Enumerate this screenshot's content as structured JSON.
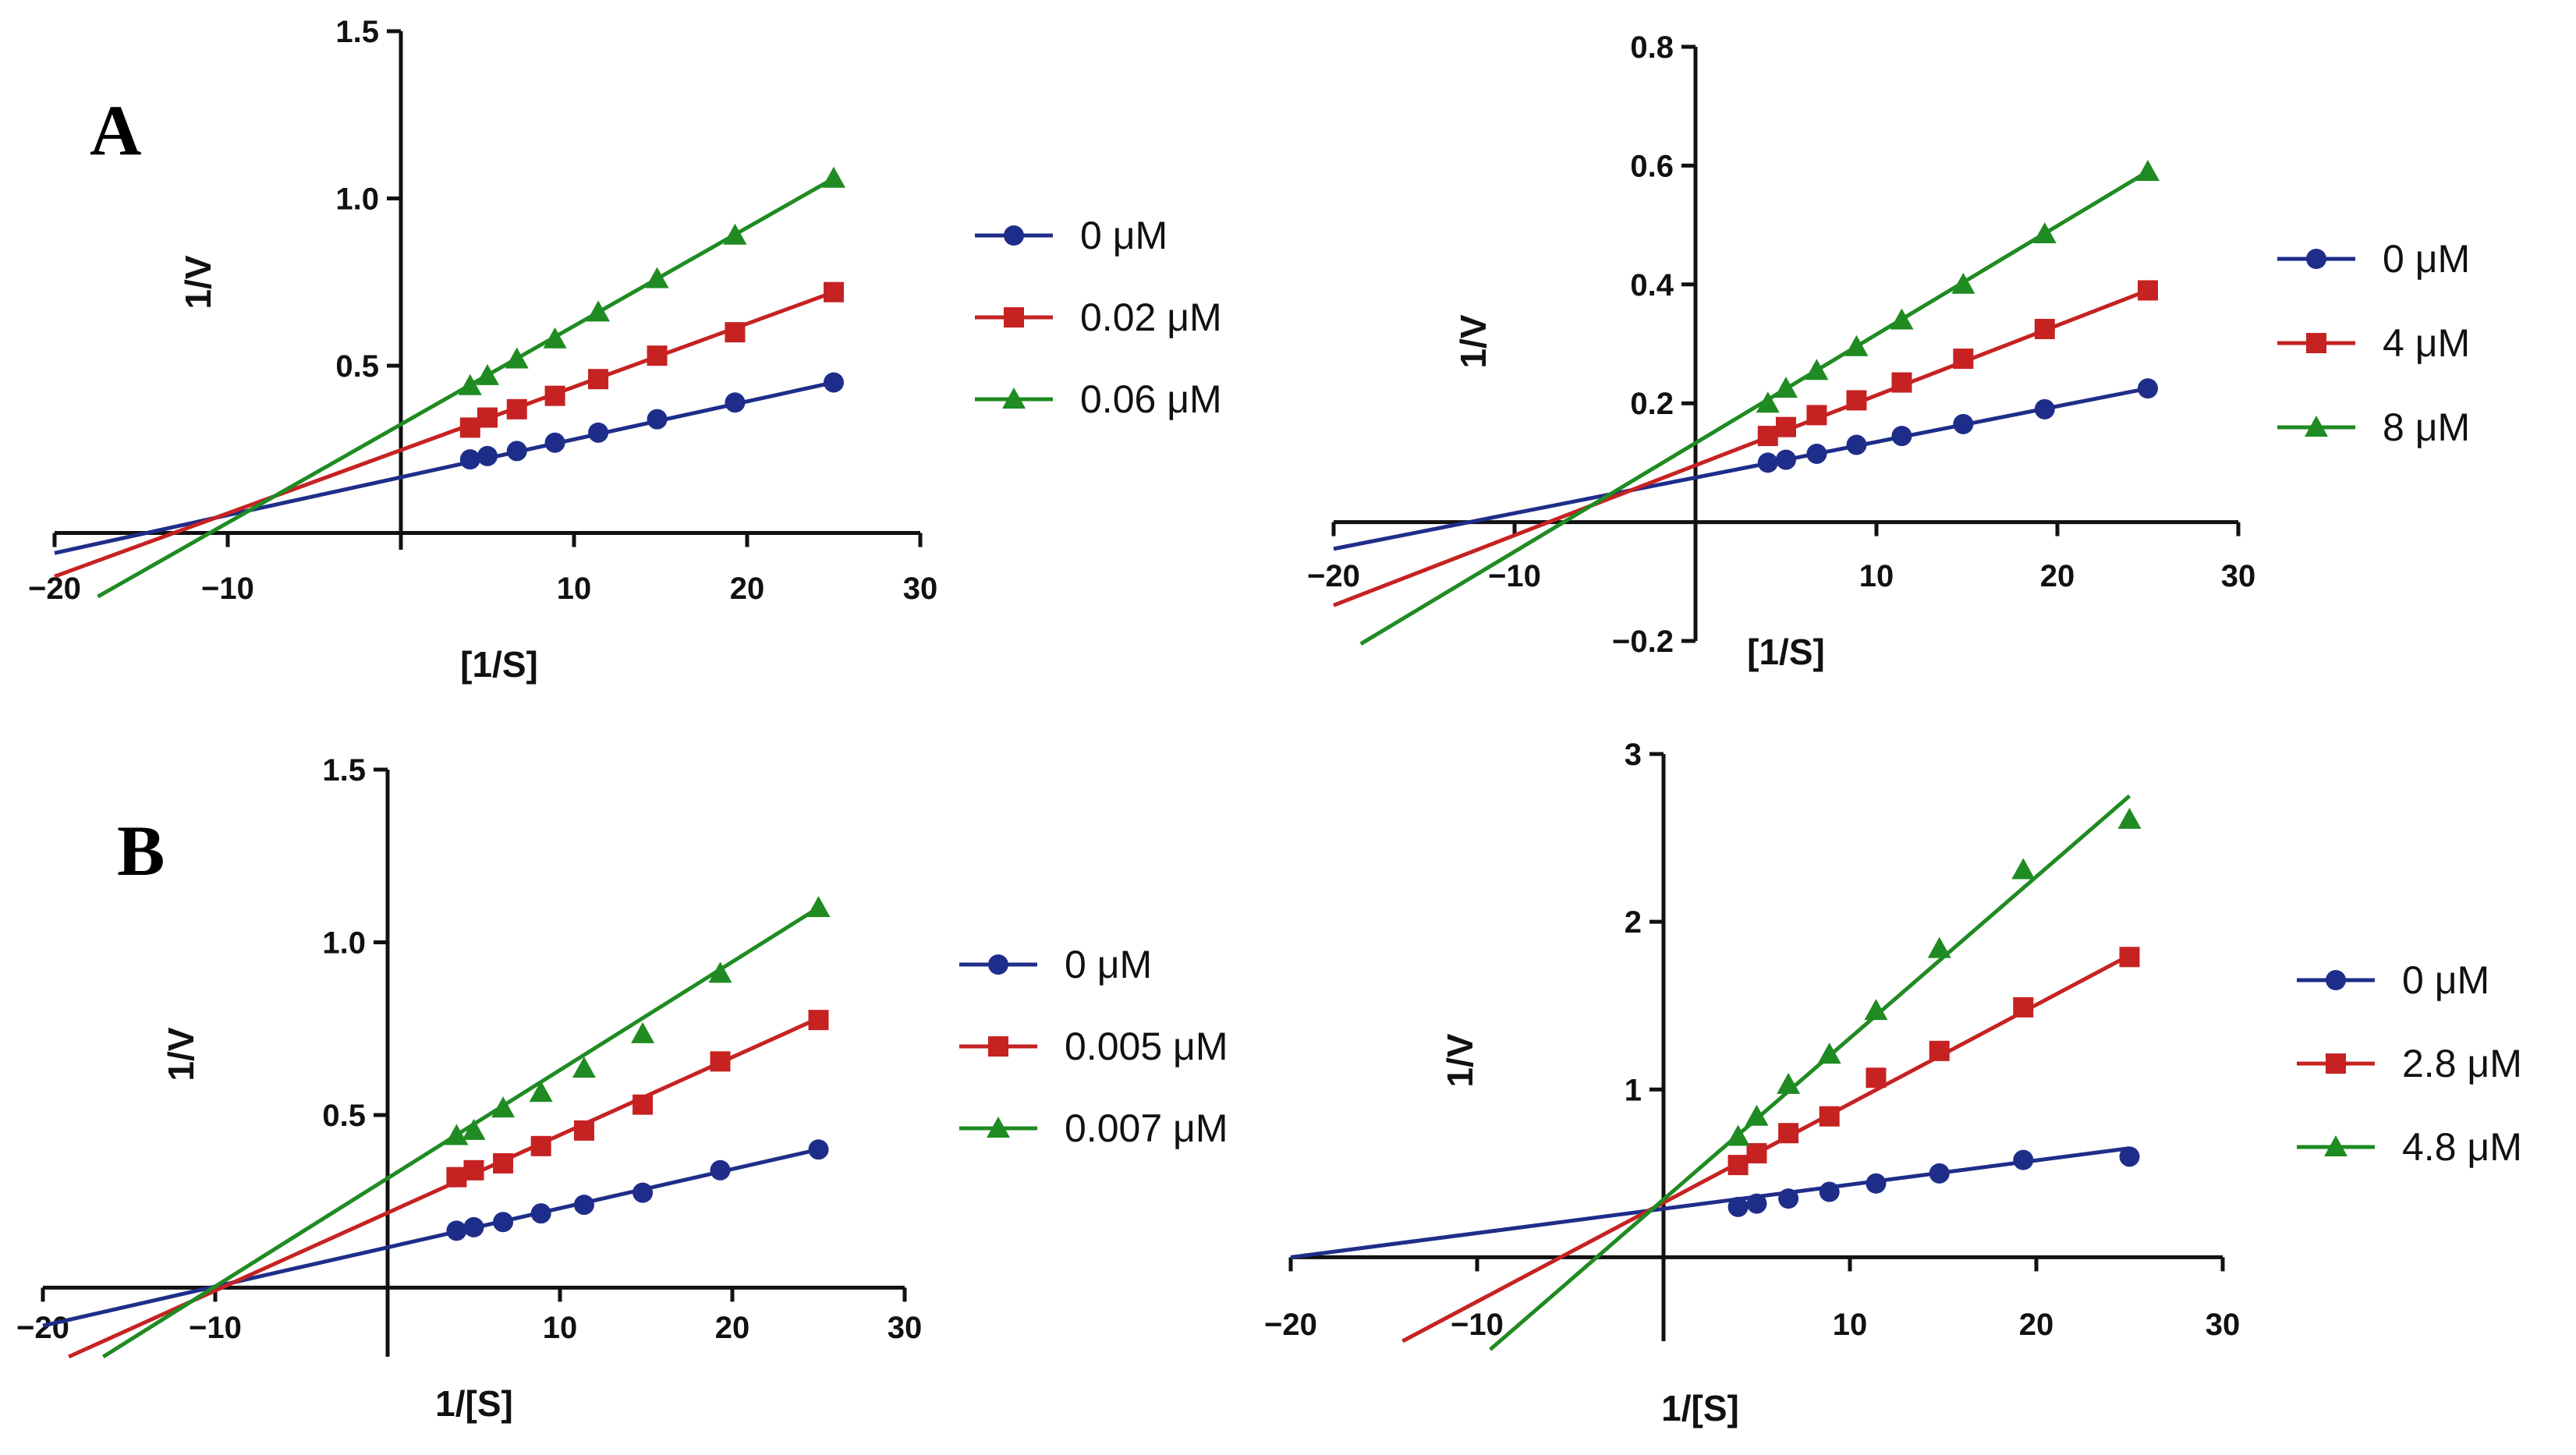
{
  "panel_labels": [
    "A",
    "B"
  ],
  "colors": {
    "blue": "#1f2d8a",
    "red": "#c62222",
    "green": "#1f8b22",
    "axis": "#111111"
  },
  "chart_data": [
    {
      "type": "scatter",
      "panel": "A",
      "xlabel": "[1/S]",
      "ylabel": "1/V",
      "xlim": [
        -20,
        30
      ],
      "ylim": [
        -0.05,
        1.5
      ],
      "xticks": [
        -20,
        -10,
        10,
        20,
        30
      ],
      "xtick_labels": [
        "-20",
        "-10",
        "10",
        "20",
        "30"
      ],
      "yticks": [
        0.5,
        1.0,
        1.5
      ],
      "ytick_labels": [
        "0.5",
        "1.0",
        "1.5"
      ],
      "grid": false,
      "legend_position": "right",
      "series": [
        {
          "name": "0 μM",
          "color": "#1f2d8a",
          "marker": "circle",
          "x": [
            4,
            5,
            6.7,
            8.9,
            11.4,
            14.8,
            19.3,
            25
          ],
          "y": [
            0.22,
            0.23,
            0.245,
            0.27,
            0.3,
            0.34,
            0.39,
            0.45
          ],
          "line": {
            "x": [
              -20,
              25
            ],
            "y": [
              -0.06,
              0.45
            ]
          }
        },
        {
          "name": "0.02 μM",
          "color": "#c62222",
          "marker": "square",
          "x": [
            4,
            5,
            6.7,
            8.9,
            11.4,
            14.8,
            19.3,
            25
          ],
          "y": [
            0.315,
            0.345,
            0.37,
            0.41,
            0.46,
            0.53,
            0.6,
            0.72
          ],
          "line": {
            "x": [
              -20,
              25
            ],
            "y": [
              -0.13,
              0.72
            ]
          }
        },
        {
          "name": "0.06 μM",
          "color": "#1f8b22",
          "marker": "triangle",
          "x": [
            4,
            5,
            6.7,
            8.9,
            11.4,
            14.8,
            19.3,
            25
          ],
          "y": [
            0.44,
            0.47,
            0.52,
            0.58,
            0.66,
            0.76,
            0.89,
            1.06
          ],
          "line": {
            "x": [
              -17.5,
              25
            ],
            "y": [
              -0.19,
              1.06
            ]
          }
        }
      ]
    },
    {
      "type": "scatter",
      "panel": "A",
      "xlabel": "[1/S]",
      "ylabel": "1/V",
      "xlim": [
        -20,
        30
      ],
      "ylim": [
        -0.2,
        0.8
      ],
      "xticks": [
        -20,
        -10,
        10,
        20,
        30
      ],
      "xtick_labels": [
        "-20",
        "-10",
        "10",
        "20",
        "30"
      ],
      "yticks": [
        -0.2,
        0.2,
        0.4,
        0.6,
        0.8
      ],
      "ytick_labels": [
        "-0.2",
        "0.2",
        "0.4",
        "0.6",
        "0.8"
      ],
      "grid": false,
      "legend_position": "right",
      "series": [
        {
          "name": "0 μM",
          "color": "#1f2d8a",
          "marker": "circle",
          "x": [
            4,
            5,
            6.7,
            8.9,
            11.4,
            14.8,
            19.3,
            25
          ],
          "y": [
            0.1,
            0.105,
            0.115,
            0.13,
            0.145,
            0.165,
            0.19,
            0.225
          ],
          "line": {
            "x": [
              -20,
              25
            ],
            "y": [
              -0.045,
              0.225
            ]
          }
        },
        {
          "name": "4 μM",
          "color": "#c62222",
          "marker": "square",
          "x": [
            4,
            5,
            6.7,
            8.9,
            11.4,
            14.8,
            19.3,
            25
          ],
          "y": [
            0.145,
            0.16,
            0.18,
            0.205,
            0.235,
            0.275,
            0.325,
            0.39
          ],
          "line": {
            "x": [
              -20,
              25
            ],
            "y": [
              -0.14,
              0.39
            ]
          }
        },
        {
          "name": "8 μM",
          "color": "#1f8b22",
          "marker": "triangle",
          "x": [
            4,
            5,
            6.7,
            8.9,
            11.4,
            14.8,
            19.3,
            25
          ],
          "y": [
            0.2,
            0.225,
            0.255,
            0.295,
            0.34,
            0.4,
            0.485,
            0.59
          ],
          "line": {
            "x": [
              -18.5,
              25
            ],
            "y": [
              -0.205,
              0.59
            ]
          }
        }
      ]
    },
    {
      "type": "scatter",
      "panel": "B",
      "xlabel": "1/[S]",
      "ylabel": "1/V",
      "xlim": [
        -20,
        30
      ],
      "ylim": [
        -0.2,
        1.5
      ],
      "xticks": [
        -20,
        -10,
        10,
        20,
        30
      ],
      "xtick_labels": [
        "-20",
        "-10",
        "10",
        "20",
        "30"
      ],
      "yticks": [
        0.5,
        1.0,
        1.5
      ],
      "ytick_labels": [
        "0.5",
        "1.0",
        "1.5"
      ],
      "grid": false,
      "legend_position": "right",
      "series": [
        {
          "name": "0 μM",
          "color": "#1f2d8a",
          "marker": "circle",
          "x": [
            4,
            5,
            6.7,
            8.9,
            11.4,
            14.8,
            19.3,
            25
          ],
          "y": [
            0.165,
            0.175,
            0.19,
            0.215,
            0.24,
            0.275,
            0.34,
            0.4
          ],
          "line": {
            "x": [
              -20,
              25
            ],
            "y": [
              -0.11,
              0.4
            ]
          }
        },
        {
          "name": "0.005 μM",
          "color": "#c62222",
          "marker": "square",
          "x": [
            4,
            5,
            6.7,
            8.9,
            11.4,
            14.8,
            19.3,
            25
          ],
          "y": [
            0.32,
            0.34,
            0.36,
            0.41,
            0.455,
            0.53,
            0.655,
            0.775
          ],
          "line": {
            "x": [
              -18.5,
              25
            ],
            "y": [
              -0.2,
              0.78
            ]
          }
        },
        {
          "name": "0.007 μM",
          "color": "#1f8b22",
          "marker": "triangle",
          "x": [
            4,
            5,
            6.7,
            8.9,
            11.4,
            14.8,
            19.3,
            25
          ],
          "y": [
            0.44,
            0.455,
            0.52,
            0.565,
            0.635,
            0.735,
            0.91,
            1.1
          ],
          "line": {
            "x": [
              -16.5,
              25
            ],
            "y": [
              -0.2,
              1.1
            ]
          }
        }
      ]
    },
    {
      "type": "scatter",
      "panel": "B",
      "xlabel": "1/[S]",
      "ylabel": "1/V",
      "xlim": [
        -20,
        30
      ],
      "ylim": [
        -0.5,
        3
      ],
      "xticks": [
        -20,
        -10,
        10,
        20,
        30
      ],
      "xtick_labels": [
        "-20",
        "-10",
        "10",
        "20",
        "30"
      ],
      "yticks": [
        1,
        2,
        3
      ],
      "ytick_labels": [
        "1",
        "2",
        "3"
      ],
      "grid": false,
      "legend_position": "right",
      "series": [
        {
          "name": "0 μM",
          "color": "#1f2d8a",
          "marker": "circle",
          "x": [
            4,
            5,
            6.7,
            8.9,
            11.4,
            14.8,
            19.3,
            25
          ],
          "y": [
            0.3,
            0.32,
            0.35,
            0.39,
            0.44,
            0.5,
            0.58,
            0.6
          ],
          "line": {
            "x": [
              -20,
              25
            ],
            "y": [
              0.0,
              0.65
            ]
          }
        },
        {
          "name": "2.8 μM",
          "color": "#c62222",
          "marker": "square",
          "x": [
            4,
            5,
            6.7,
            8.9,
            11.4,
            14.8,
            19.3,
            25
          ],
          "y": [
            0.55,
            0.62,
            0.74,
            0.84,
            1.07,
            1.23,
            1.49,
            1.79
          ],
          "line": {
            "x": [
              -14,
              25
            ],
            "y": [
              -0.5,
              1.8
            ]
          }
        },
        {
          "name": "4.8 μM",
          "color": "#1f8b22",
          "marker": "triangle",
          "x": [
            4,
            5,
            6.7,
            8.9,
            11.4,
            14.8,
            19.3,
            25
          ],
          "y": [
            0.72,
            0.84,
            1.03,
            1.21,
            1.47,
            1.84,
            2.31,
            2.61
          ],
          "line": {
            "x": [
              -9.3,
              25
            ],
            "y": [
              -0.55,
              2.75
            ]
          }
        }
      ]
    }
  ]
}
